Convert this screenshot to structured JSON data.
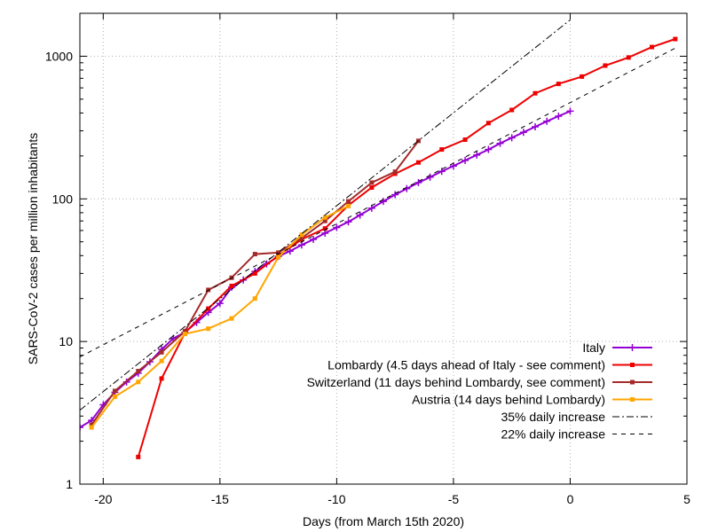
{
  "chart_data": {
    "type": "line",
    "title": "",
    "xlabel": "Days (from March 15th 2020)",
    "ylabel": "SARS-CoV-2 cases per million inhabitants",
    "xlim": [
      -21,
      5
    ],
    "ylim": [
      1,
      2000
    ],
    "yscale": "log",
    "grid": true,
    "legend_position": "bottom-right",
    "x_ticks": [
      -20,
      -15,
      -10,
      -5,
      0,
      5
    ],
    "x_tick_labels": [
      "-20",
      "-15",
      "-10",
      "-5",
      "0",
      "5"
    ],
    "y_ticks": [
      1,
      10,
      100,
      1000
    ],
    "y_tick_labels": [
      "1",
      "10",
      "100",
      "1000"
    ],
    "series": [
      {
        "name": "Italy",
        "color": "#9400d3",
        "marker": "plus",
        "style": "solid",
        "x": [
          -21,
          -20.5,
          -20,
          -19.5,
          -19,
          -18.5,
          -18,
          -17.5,
          -17,
          -16.5,
          -16,
          -15.5,
          -15,
          -14.5,
          -14,
          -13.5,
          -13,
          -12.5,
          -12,
          -11.5,
          -11,
          -10.5,
          -10,
          -9.5,
          -9,
          -8.5,
          -8,
          -7.5,
          -7,
          -6.5,
          -6,
          -5.5,
          -5,
          -4.5,
          -4,
          -3.5,
          -3,
          -2.5,
          -2,
          -1.5,
          -1,
          -0.5,
          0
        ],
        "y": [
          2.5,
          2.8,
          3.6,
          4.4,
          5.2,
          6.0,
          7.2,
          8.8,
          10.5,
          11.6,
          13.6,
          16.0,
          18.5,
          24.0,
          27.0,
          31.0,
          35.0,
          39.5,
          43.0,
          47.5,
          52.0,
          57.5,
          63.0,
          69.0,
          77.0,
          86.0,
          96.0,
          107,
          118,
          130,
          142,
          156,
          170,
          186,
          203,
          222,
          245,
          268,
          293,
          320,
          350,
          380,
          412
        ]
      },
      {
        "name": "Lombardy (4.5 days ahead of Italy - see comment)",
        "color": "#ee0000",
        "marker": "square",
        "style": "solid",
        "x": [
          -18.5,
          -17.5,
          -16.5,
          -15.5,
          -14.5,
          -13.5,
          -12.5,
          -11.5,
          -10.5,
          -9.5,
          -8.5,
          -7.5,
          -6.5,
          -5.5,
          -4.5,
          -3.5,
          -2.5,
          -1.5,
          -0.5,
          0.5,
          1.5,
          2.5,
          3.5,
          4.5
        ],
        "y": [
          1.55,
          5.5,
          11.5,
          17.0,
          24.5,
          30.0,
          40.0,
          52.0,
          62.0,
          90.0,
          120,
          150,
          180,
          222,
          260,
          340,
          420,
          550,
          640,
          720,
          860,
          980,
          1160,
          1320
        ]
      },
      {
        "name": "Switzerland (11 days behind Lombardy, see comment)",
        "color": "#a52a2a",
        "marker": "square",
        "style": "solid",
        "x": [
          -20.5,
          -19.5,
          -18.5,
          -17.5,
          -16.5,
          -15.5,
          -14.5,
          -13.5,
          -12.5,
          -11.5,
          -10.5,
          -9.5,
          -8.5,
          -7.5,
          -6.5
        ],
        "y": [
          2.6,
          4.5,
          6.2,
          8.4,
          11.8,
          23.0,
          28.0,
          41.0,
          42.0,
          53.0,
          70.0,
          96.0,
          130,
          155,
          255
        ]
      },
      {
        "name": "Austria (14 days behind Lombardy)",
        "color": "#ffa500",
        "marker": "square",
        "style": "solid",
        "x": [
          -20.5,
          -19.5,
          -18.5,
          -17.5,
          -16.5,
          -15.5,
          -14.5,
          -13.5,
          -12.5,
          -11.5,
          -10.5,
          -9.5
        ],
        "y": [
          2.5,
          4.1,
          5.2,
          7.3,
          11.3,
          12.3,
          14.5,
          20.0,
          39.0,
          56.0,
          74.0,
          89.0
        ]
      },
      {
        "name": "35% daily increase",
        "color": "#000000",
        "marker": "none",
        "style": "dashdot",
        "x": [
          -21,
          0
        ],
        "y": [
          3.3,
          1800
        ]
      },
      {
        "name": "22% daily increase",
        "color": "#000000",
        "marker": "none",
        "style": "dashed",
        "x": [
          -21,
          4.5
        ],
        "y": [
          7.8,
          1140
        ]
      }
    ]
  }
}
